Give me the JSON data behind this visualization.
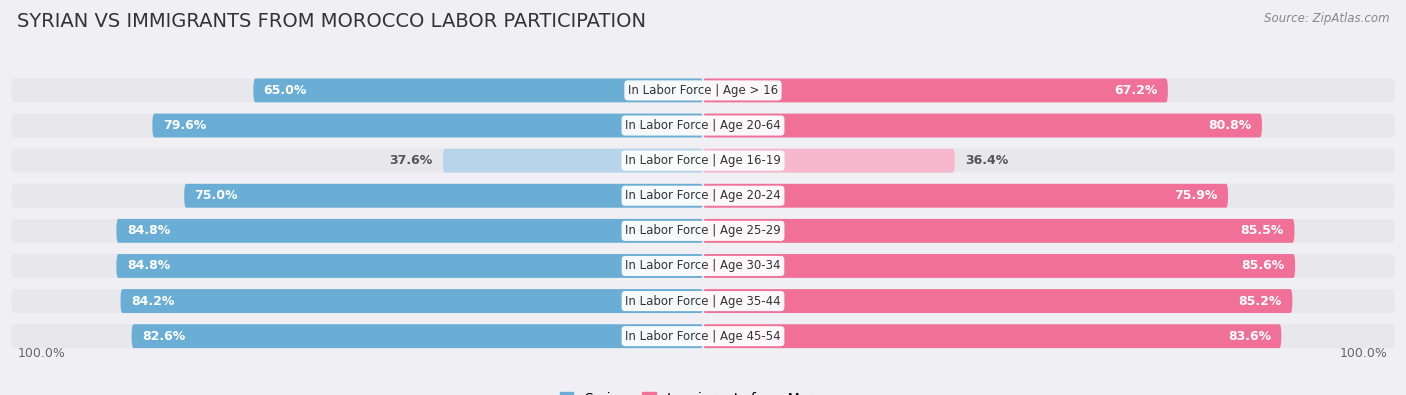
{
  "title": "SYRIAN VS IMMIGRANTS FROM MOROCCO LABOR PARTICIPATION",
  "source": "Source: ZipAtlas.com",
  "categories": [
    "In Labor Force | Age > 16",
    "In Labor Force | Age 20-64",
    "In Labor Force | Age 16-19",
    "In Labor Force | Age 20-24",
    "In Labor Force | Age 25-29",
    "In Labor Force | Age 30-34",
    "In Labor Force | Age 35-44",
    "In Labor Force | Age 45-54"
  ],
  "syrian_values": [
    65.0,
    79.6,
    37.6,
    75.0,
    84.8,
    84.8,
    84.2,
    82.6
  ],
  "morocco_values": [
    67.2,
    80.8,
    36.4,
    75.9,
    85.5,
    85.6,
    85.2,
    83.6
  ],
  "syrian_color": "#6aaed6",
  "syrian_color_light": "#b8d4ea",
  "morocco_color": "#f07098",
  "morocco_color_light": "#f5b8cc",
  "row_bg_color": "#e8e8ec",
  "page_bg_color": "#f0f0f4",
  "label_color_dark": "#555555",
  "max_val": 100.0,
  "title_fontsize": 14,
  "label_fontsize": 9,
  "category_fontsize": 8.5,
  "legend_fontsize": 10,
  "low_threshold": 50.0
}
